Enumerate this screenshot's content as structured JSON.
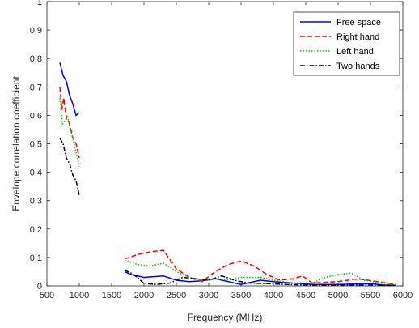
{
  "chart_data": {
    "type": "line",
    "title": "",
    "xlabel": "Frequency (MHz)",
    "ylabel": "Envelope correlation coefficient",
    "xlim": [
      500,
      6000
    ],
    "ylim": [
      0,
      1
    ],
    "xticks": [
      500,
      1000,
      1500,
      2000,
      2500,
      3000,
      3500,
      4000,
      4500,
      5000,
      5500,
      6000
    ],
    "yticks": [
      0,
      0.1,
      0.2,
      0.3,
      0.4,
      0.5,
      0.6,
      0.7,
      0.8,
      0.9,
      1
    ],
    "grid": false,
    "legend_position": "top-right",
    "series": [
      {
        "name": "Free space",
        "color": "#0000ff",
        "dash": "solid",
        "segments": [
          [
            [
              700,
              0.785
            ],
            [
              750,
              0.74
            ],
            [
              800,
              0.72
            ],
            [
              850,
              0.67
            ],
            [
              900,
              0.64
            ],
            [
              950,
              0.6
            ],
            [
              1000,
              0.61
            ]
          ],
          [
            [
              1700,
              0.05
            ],
            [
              1800,
              0.04
            ],
            [
              2000,
              0.03
            ],
            [
              2300,
              0.035
            ],
            [
              2500,
              0.02
            ],
            [
              2700,
              0.015
            ],
            [
              2900,
              0.018
            ],
            [
              3100,
              0.025
            ],
            [
              3300,
              0.015
            ],
            [
              3500,
              0.005
            ],
            [
              3800,
              0.02
            ],
            [
              4000,
              0.015
            ],
            [
              4300,
              0.01
            ],
            [
              4600,
              0.005
            ],
            [
              5000,
              0.005
            ],
            [
              5500,
              0.008
            ],
            [
              5700,
              0.003
            ],
            [
              5900,
              0.002
            ]
          ]
        ]
      },
      {
        "name": "Right hand",
        "color": "#ff0000",
        "dash": "dashed",
        "segments": [
          [
            [
              700,
              0.7
            ],
            [
              730,
              0.62
            ],
            [
              760,
              0.66
            ],
            [
              800,
              0.59
            ],
            [
              850,
              0.57
            ],
            [
              900,
              0.52
            ],
            [
              950,
              0.5
            ],
            [
              1000,
              0.45
            ]
          ],
          [
            [
              1700,
              0.095
            ],
            [
              1900,
              0.11
            ],
            [
              2100,
              0.12
            ],
            [
              2300,
              0.125
            ],
            [
              2500,
              0.06
            ],
            [
              2700,
              0.03
            ],
            [
              2900,
              0.015
            ],
            [
              3100,
              0.05
            ],
            [
              3300,
              0.075
            ],
            [
              3500,
              0.088
            ],
            [
              3700,
              0.07
            ],
            [
              3900,
              0.04
            ],
            [
              4100,
              0.02
            ],
            [
              4300,
              0.025
            ],
            [
              4450,
              0.035
            ],
            [
              4600,
              0.01
            ],
            [
              5000,
              0.015
            ],
            [
              5300,
              0.025
            ],
            [
              5600,
              0.015
            ],
            [
              5900,
              0.005
            ]
          ]
        ]
      },
      {
        "name": "Left hand",
        "color": "#00cc00",
        "dash": "dotted",
        "segments": [
          [
            [
              700,
              0.66
            ],
            [
              740,
              0.57
            ],
            [
              780,
              0.58
            ],
            [
              820,
              0.6
            ],
            [
              860,
              0.55
            ],
            [
              900,
              0.52
            ],
            [
              950,
              0.47
            ],
            [
              1000,
              0.42
            ]
          ],
          [
            [
              1700,
              0.09
            ],
            [
              1900,
              0.075
            ],
            [
              2100,
              0.07
            ],
            [
              2300,
              0.08
            ],
            [
              2500,
              0.05
            ],
            [
              2700,
              0.03
            ],
            [
              2900,
              0.02
            ],
            [
              3100,
              0.025
            ],
            [
              3300,
              0.02
            ],
            [
              3500,
              0.03
            ],
            [
              3800,
              0.03
            ],
            [
              4000,
              0.02
            ],
            [
              4300,
              0.01
            ],
            [
              4600,
              0.01
            ],
            [
              4800,
              0.03
            ],
            [
              5000,
              0.04
            ],
            [
              5200,
              0.045
            ],
            [
              5400,
              0.02
            ],
            [
              5700,
              0.01
            ],
            [
              5900,
              0.005
            ]
          ]
        ]
      },
      {
        "name": "Two hands",
        "color": "#000000",
        "dash": "dashdot",
        "segments": [
          [
            [
              700,
              0.52
            ],
            [
              750,
              0.5
            ],
            [
              800,
              0.45
            ],
            [
              850,
              0.43
            ],
            [
              900,
              0.39
            ],
            [
              950,
              0.37
            ],
            [
              1000,
              0.32
            ]
          ],
          [
            [
              1700,
              0.055
            ],
            [
              1800,
              0.045
            ],
            [
              1900,
              0.03
            ],
            [
              2000,
              0.008
            ],
            [
              2200,
              0.005
            ],
            [
              2400,
              0.01
            ],
            [
              2600,
              0.03
            ],
            [
              2800,
              0.025
            ],
            [
              3000,
              0.02
            ],
            [
              3200,
              0.035
            ],
            [
              3400,
              0.02
            ],
            [
              3600,
              0.01
            ],
            [
              3900,
              0.008
            ],
            [
              4200,
              0.005
            ],
            [
              4500,
              0.003
            ],
            [
              5000,
              0.002
            ],
            [
              5500,
              0.003
            ],
            [
              5900,
              0.001
            ]
          ]
        ]
      }
    ]
  }
}
